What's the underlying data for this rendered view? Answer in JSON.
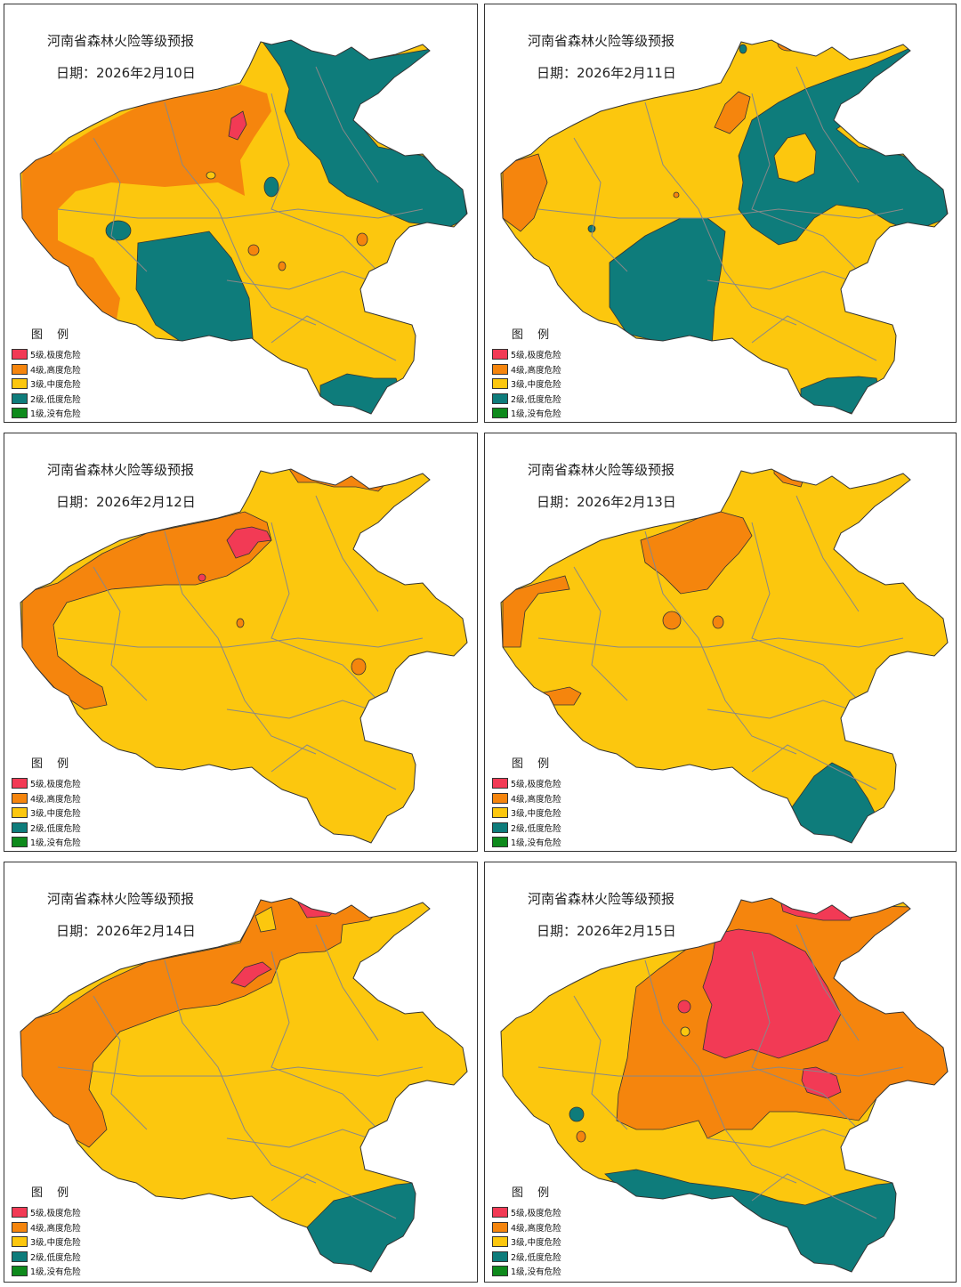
{
  "colors": {
    "level5": "#f23a55",
    "level4": "#f5850d",
    "level3": "#fcc70e",
    "level2": "#0e7c7b",
    "level1": "#0e8a1c",
    "boundary": "#888888"
  },
  "legend": {
    "title": "图  例",
    "items": [
      {
        "label": "5级,极度危险",
        "color": "#f23a55"
      },
      {
        "label": "4级,高度危险",
        "color": "#f5850d"
      },
      {
        "label": "3级,中度危险",
        "color": "#fcc70e"
      },
      {
        "label": "2级,低度危险",
        "color": "#0e7c7b"
      },
      {
        "label": "1级,没有危险",
        "color": "#0e8a1c"
      }
    ]
  },
  "panels": [
    {
      "title": "河南省森林火险等级预报",
      "date": "日期：2026年2月10日"
    },
    {
      "title": "河南省森林火险等级预报",
      "date": "日期：2026年2月11日"
    },
    {
      "title": "河南省森林火险等级预报",
      "date": "日期：2026年2月12日"
    },
    {
      "title": "河南省森林火险等级预报",
      "date": "日期：2026年2月13日"
    },
    {
      "title": "河南省森林火险等级预报",
      "date": "日期：2026年2月14日"
    },
    {
      "title": "河南省森林火险等级预报",
      "date": "日期：2026年2月15日"
    }
  ]
}
